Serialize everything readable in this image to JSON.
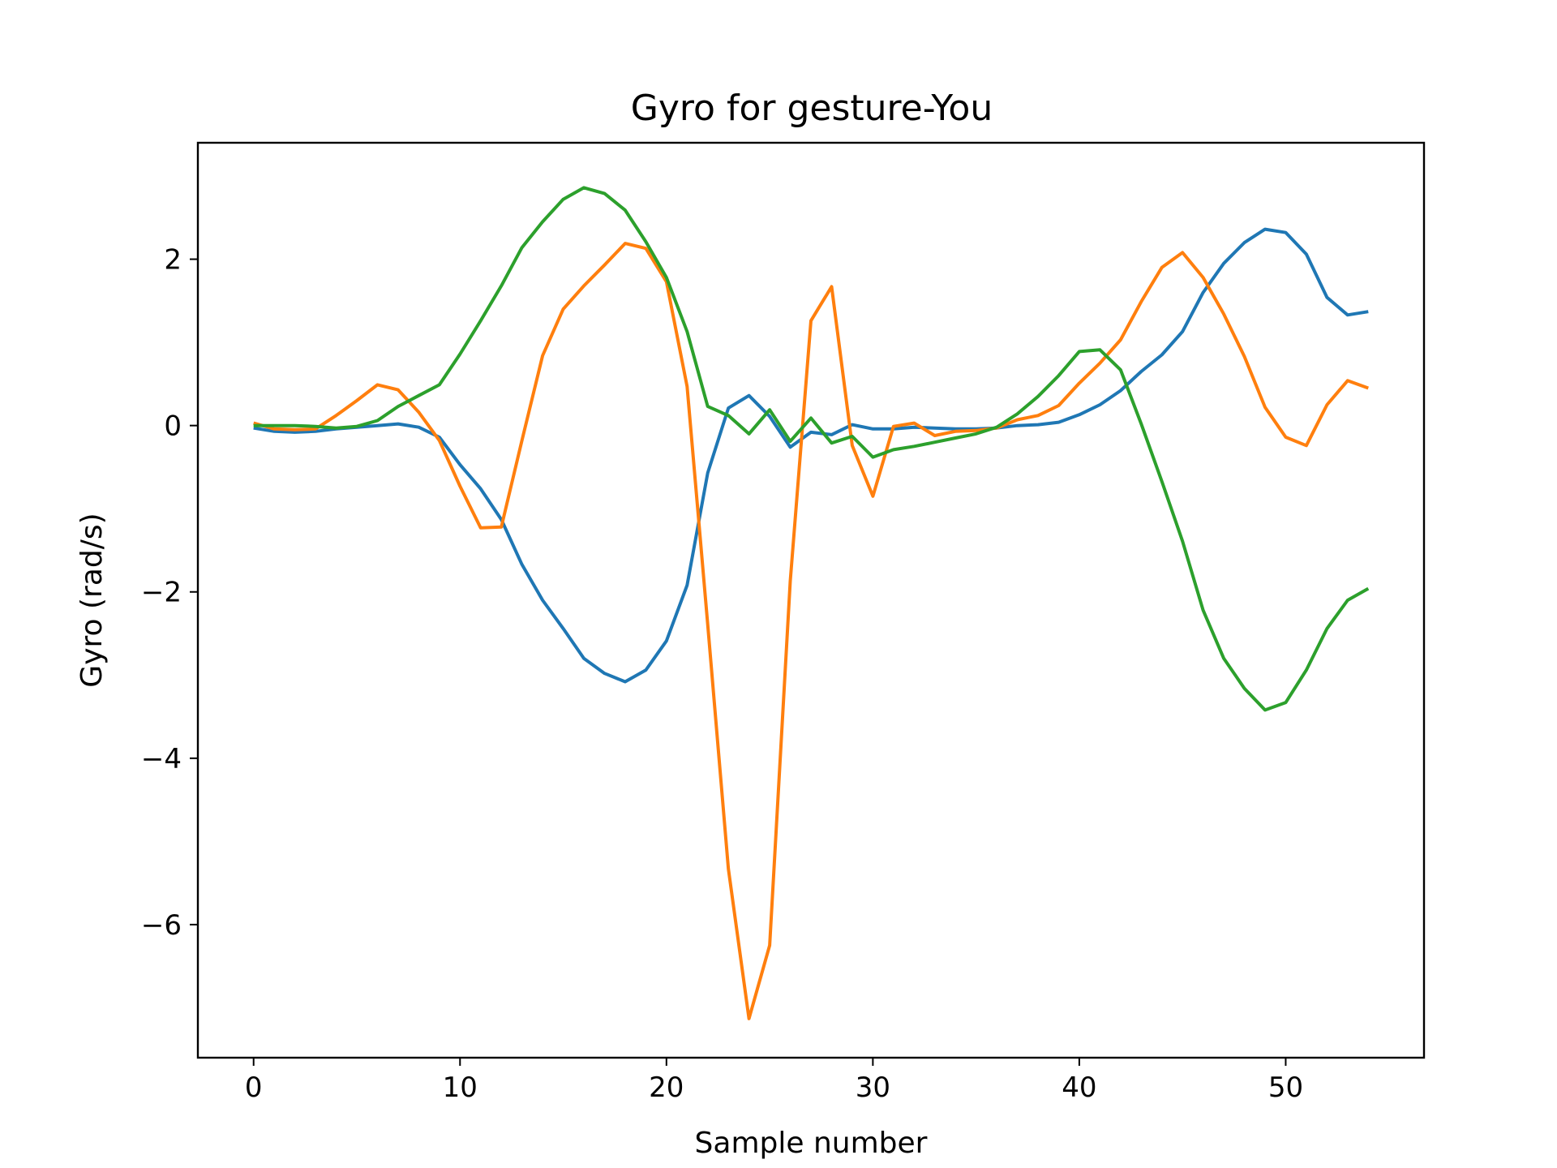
{
  "chart_data": {
    "type": "line",
    "title": "Gyro for gesture-You",
    "xlabel": "Sample number",
    "ylabel": "Gyro  (rad/s)",
    "xlim": [
      -2.7,
      56.7
    ],
    "ylim": [
      -7.6,
      3.4
    ],
    "xticks": [
      0,
      10,
      20,
      30,
      40,
      50
    ],
    "yticks": [
      -6,
      -4,
      -2,
      0,
      2
    ],
    "ytick_labels": [
      "−6",
      "−4",
      "−2",
      "0",
      "2"
    ],
    "grid": false,
    "legend": "none",
    "x": [
      0,
      1,
      2,
      3,
      4,
      5,
      6,
      7,
      8,
      9,
      10,
      11,
      12,
      13,
      14,
      15,
      16,
      17,
      18,
      19,
      20,
      21,
      22,
      23,
      24,
      25,
      26,
      27,
      28,
      29,
      30,
      31,
      32,
      33,
      34,
      35,
      36,
      37,
      38,
      39,
      40,
      41,
      42,
      43,
      44,
      45,
      46,
      47,
      48,
      49,
      50,
      51,
      52,
      53,
      54
    ],
    "series": [
      {
        "color": "#1f77b4",
        "values": [
          -0.03,
          -0.07,
          -0.08,
          -0.07,
          -0.04,
          -0.02,
          0.0,
          0.02,
          -0.02,
          -0.14,
          -0.47,
          -0.76,
          -1.13,
          -1.67,
          -2.1,
          -2.44,
          -2.8,
          -2.98,
          -3.08,
          -2.94,
          -2.59,
          -1.92,
          -0.57,
          0.21,
          0.36,
          0.11,
          -0.26,
          -0.08,
          -0.11,
          0.01,
          -0.04,
          -0.04,
          -0.02,
          -0.03,
          -0.04,
          -0.04,
          -0.03,
          0.0,
          0.01,
          0.04,
          0.13,
          0.25,
          0.42,
          0.65,
          0.85,
          1.13,
          1.6,
          1.95,
          2.2,
          2.36,
          2.32,
          2.06,
          1.54,
          1.33,
          1.37
        ]
      },
      {
        "color": "#ff7f0e",
        "values": [
          0.03,
          -0.04,
          -0.05,
          -0.04,
          0.12,
          0.3,
          0.49,
          0.43,
          0.16,
          -0.18,
          -0.73,
          -1.23,
          -1.22,
          -0.18,
          0.84,
          1.4,
          1.68,
          1.93,
          2.19,
          2.13,
          1.73,
          0.47,
          -2.39,
          -5.33,
          -7.13,
          -6.25,
          -1.87,
          1.26,
          1.67,
          -0.24,
          -0.85,
          -0.01,
          0.03,
          -0.12,
          -0.07,
          -0.06,
          -0.03,
          0.07,
          0.12,
          0.24,
          0.51,
          0.75,
          1.03,
          1.49,
          1.9,
          2.08,
          1.78,
          1.34,
          0.83,
          0.22,
          -0.14,
          -0.24,
          0.25,
          0.54,
          0.45
        ]
      },
      {
        "color": "#2ca02c",
        "values": [
          0.0,
          0.0,
          0.0,
          -0.01,
          -0.03,
          -0.01,
          0.06,
          0.23,
          0.36,
          0.49,
          0.86,
          1.26,
          1.68,
          2.14,
          2.45,
          2.72,
          2.86,
          2.79,
          2.59,
          2.21,
          1.78,
          1.13,
          0.23,
          0.12,
          -0.1,
          0.19,
          -0.19,
          0.09,
          -0.21,
          -0.13,
          -0.38,
          -0.29,
          -0.25,
          -0.2,
          -0.15,
          -0.1,
          -0.02,
          0.14,
          0.35,
          0.6,
          0.89,
          0.91,
          0.67,
          0.02,
          -0.67,
          -1.39,
          -2.22,
          -2.8,
          -3.16,
          -3.42,
          -3.33,
          -2.94,
          -2.44,
          -2.1,
          -1.96
        ]
      }
    ]
  }
}
